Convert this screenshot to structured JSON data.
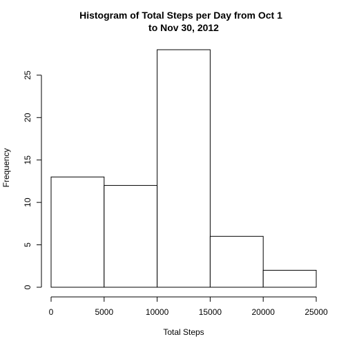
{
  "chart_data": {
    "type": "bar",
    "title_lines": [
      "Histogram of Total Steps per Day from Oct 1",
      "to Nov 30, 2012"
    ],
    "xlabel": "Total Steps",
    "ylabel": "Frequency",
    "bins": [
      {
        "start": 0,
        "end": 5000,
        "count": 13
      },
      {
        "start": 5000,
        "end": 10000,
        "count": 12
      },
      {
        "start": 10000,
        "end": 15000,
        "count": 28
      },
      {
        "start": 15000,
        "end": 20000,
        "count": 6
      },
      {
        "start": 20000,
        "end": 25000,
        "count": 2
      }
    ],
    "xlim": [
      0,
      25000
    ],
    "ylim": [
      0,
      28
    ],
    "x_ticks": [
      0,
      5000,
      10000,
      15000,
      20000,
      25000
    ],
    "y_ticks": [
      0,
      5,
      10,
      15,
      20,
      25
    ],
    "bar_fill": "#ffffff",
    "bar_stroke": "#000000",
    "grid": false,
    "legend": "none"
  }
}
